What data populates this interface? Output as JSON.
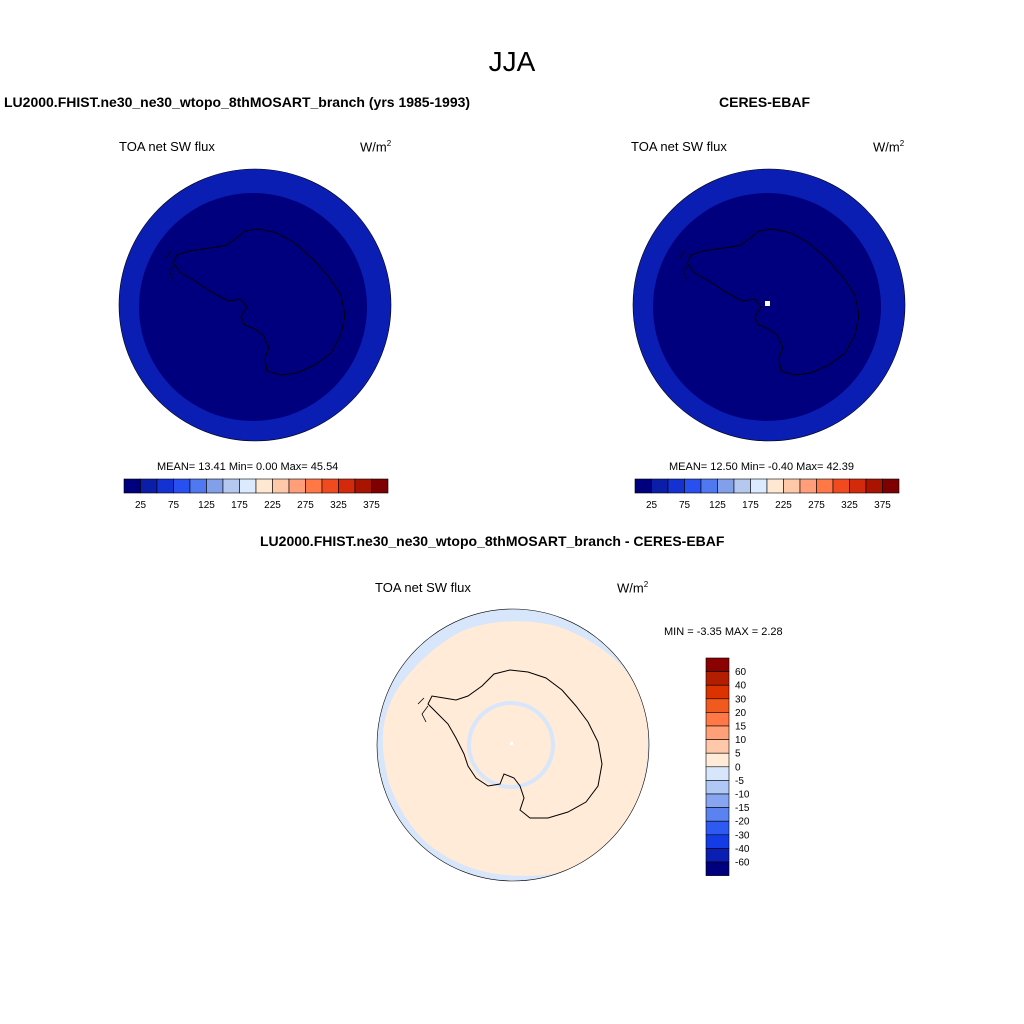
{
  "main_title": "JJA",
  "panel1": {
    "title": "LU2000.FHIST.ne30_ne30_wtopo_8thMOSART_branch (yrs 1985-1993)",
    "left_label": "TOA net SW flux",
    "units_base": "W/m",
    "units_sup": "2",
    "stats": "MEAN=  13.41  Min=   0.00  Max=  45.54"
  },
  "panel2": {
    "title": "CERES-EBAF",
    "left_label": "TOA net SW flux",
    "units_base": "W/m",
    "units_sup": "2",
    "stats": "MEAN=  12.50  Min=  -0.40  Max=  42.39"
  },
  "panel3": {
    "title": "LU2000.FHIST.ne30_ne30_wtopo_8thMOSART_branch - CERES-EBAF",
    "left_label": "TOA net SW flux",
    "units_base": "W/m",
    "units_sup": "2",
    "minmax": "MIN =  -3.35 MAX =   2.28"
  },
  "colorbar_abs": {
    "colors": [
      "#00007f",
      "#0a1ea8",
      "#1432d2",
      "#2850f0",
      "#5078f0",
      "#82a0ea",
      "#b4c8f0",
      "#dceaff",
      "#ffe8d2",
      "#ffc8a8",
      "#ff9e78",
      "#ff7846",
      "#f04a1e",
      "#d22a0a",
      "#a81400",
      "#7f0000"
    ],
    "tick_labels": [
      "25",
      "75",
      "125",
      "175",
      "225",
      "275",
      "325",
      "375"
    ]
  },
  "colorbar_diff": {
    "colors": [
      "#8b0000",
      "#b41e00",
      "#dc3200",
      "#f05a1e",
      "#ff7846",
      "#ffa078",
      "#ffc8aa",
      "#ffebd7",
      "#d7e6fa",
      "#afc8f5",
      "#87a5f0",
      "#5a82f0",
      "#2d5af0",
      "#143ce6",
      "#0a1eb4",
      "#00007f"
    ],
    "tick_labels": [
      "60",
      "40",
      "30",
      "20",
      "15",
      "10",
      "5",
      "0",
      "-5",
      "-10",
      "-15",
      "-20",
      "-30",
      "-40",
      "-60"
    ]
  },
  "colors": {
    "outer_ring": "#0a1eb4",
    "inner_disk": "#00007f",
    "diff_ocean": "#d7e6fa",
    "diff_land": "#ffebd7",
    "missing": "#ffffff"
  },
  "chart_data": {
    "type": "heatmap",
    "title": "JJA",
    "maps": [
      {
        "name": "LU2000.FHIST.ne30_ne30_wtopo_8thMOSART_branch (yrs 1985-1993)",
        "variable": "TOA net SW flux",
        "units": "W/m2",
        "mean": 13.41,
        "min": 0.0,
        "max": 45.54
      },
      {
        "name": "CERES-EBAF",
        "variable": "TOA net SW flux",
        "units": "W/m2",
        "mean": 12.5,
        "min": -0.4,
        "max": 42.39
      },
      {
        "name": "LU2000.FHIST.ne30_ne30_wtopo_8thMOSART_branch - CERES-EBAF",
        "variable": "TOA net SW flux",
        "units": "W/m2",
        "min": -3.35,
        "max": 2.28
      }
    ],
    "abs_levels": [
      25,
      75,
      125,
      175,
      225,
      275,
      325,
      375
    ],
    "diff_levels": [
      60,
      40,
      30,
      20,
      15,
      10,
      5,
      0,
      -5,
      -10,
      -15,
      -20,
      -30,
      -40,
      -60
    ]
  }
}
